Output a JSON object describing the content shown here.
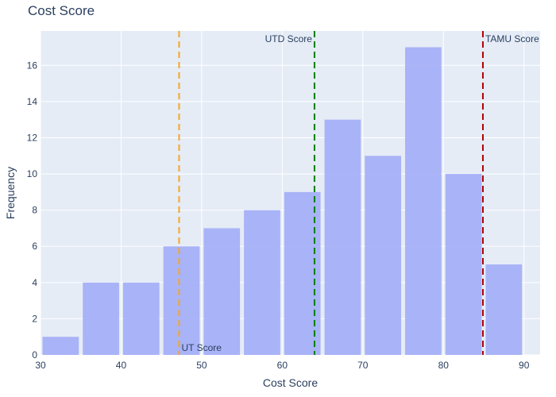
{
  "chart_data": {
    "type": "bar",
    "title": "Cost Score",
    "xlabel": "Cost Score",
    "ylabel": "Frequency",
    "xlim": [
      30,
      92
    ],
    "ylim": [
      0,
      17.9
    ],
    "x_ticks": [
      30,
      40,
      50,
      60,
      70,
      80,
      90
    ],
    "y_ticks": [
      0,
      2,
      4,
      6,
      8,
      10,
      12,
      14,
      16
    ],
    "bin_width": 5,
    "bins": [
      {
        "start": 30,
        "end": 35,
        "count": 1
      },
      {
        "start": 35,
        "end": 40,
        "count": 4
      },
      {
        "start": 40,
        "end": 45,
        "count": 4
      },
      {
        "start": 45,
        "end": 50,
        "count": 6
      },
      {
        "start": 50,
        "end": 55,
        "count": 7
      },
      {
        "start": 55,
        "end": 60,
        "count": 8
      },
      {
        "start": 60,
        "end": 65,
        "count": 9
      },
      {
        "start": 65,
        "end": 70,
        "count": 13
      },
      {
        "start": 70,
        "end": 75,
        "count": 11
      },
      {
        "start": 75,
        "end": 80,
        "count": 17
      },
      {
        "start": 80,
        "end": 85,
        "count": 10
      },
      {
        "start": 85,
        "end": 90,
        "count": 5
      }
    ],
    "bar_color": "#a5b0f7",
    "plot_bg": "#e5ecf6",
    "grid": true,
    "reference_lines": [
      {
        "label": "UT Score",
        "x": 47.2,
        "color": "#f5a623",
        "label_position": "bottom-right"
      },
      {
        "label": "UTD Score",
        "x": 64,
        "color": "#008000",
        "label_position": "top-left"
      },
      {
        "label": "TAMU Score",
        "x": 84.9,
        "color": "#b00000",
        "label_position": "top-right"
      }
    ]
  }
}
